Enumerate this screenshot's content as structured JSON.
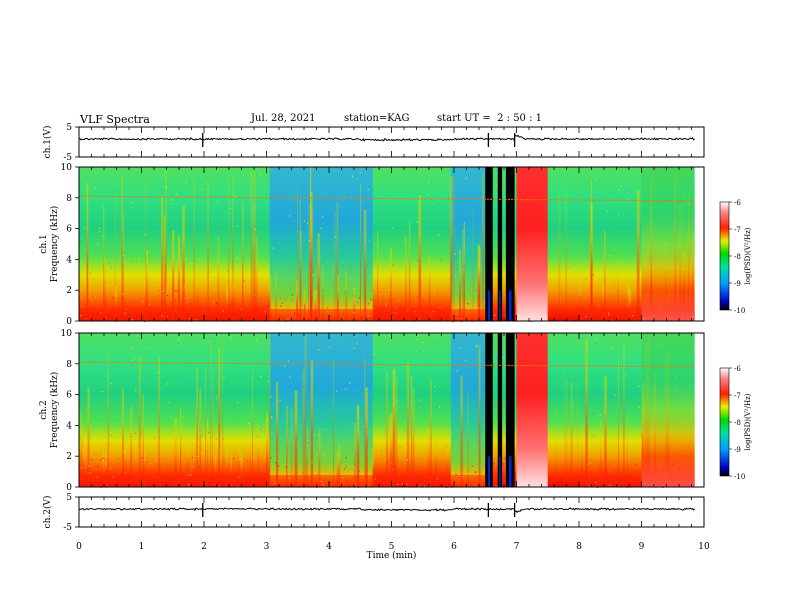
{
  "header": {
    "title": "VLF Spectra",
    "date": "Jul. 28, 2021",
    "station": "station=KAG",
    "start_time": "start UT =  2 : 50 : 1"
  },
  "chart_data": {
    "type": "heatmap",
    "xlabel": "Time (min)",
    "xlim": [
      0,
      10
    ],
    "xticks": [
      "0",
      "1",
      "2",
      "3",
      "4",
      "5",
      "6",
      "7",
      "8",
      "9",
      "10"
    ],
    "panels": [
      {
        "name": "ch.1(V)",
        "kind": "waveform",
        "ylabel": "ch.1(V)",
        "yticks": [
          "5",
          "-5"
        ],
        "ylim": [
          -5,
          5
        ]
      },
      {
        "name": "ch.1",
        "kind": "spectrogram",
        "ylabel": "ch.1",
        "ylabel2": "Frequency (kHz)",
        "ylim": [
          0,
          10
        ],
        "yticks": [
          "0",
          "2",
          "4",
          "6",
          "8",
          "10"
        ],
        "colorbar": {
          "label": "log(PSD)(V²/Hz)",
          "range": [
            -10,
            -6
          ],
          "ticks": [
            "-6",
            "-7",
            "-8",
            "-9",
            "-10"
          ]
        }
      },
      {
        "name": "ch.2",
        "kind": "spectrogram",
        "ylabel": "ch.2",
        "ylabel2": "Frequency (kHz)",
        "ylim": [
          0,
          10
        ],
        "yticks": [
          "0",
          "2",
          "4",
          "6",
          "8",
          "10"
        ],
        "colorbar": {
          "label": "log(PSD)(V²/Hz)",
          "range": [
            -10,
            -6
          ],
          "ticks": [
            "-6",
            "-7",
            "-8",
            "-9",
            "-10"
          ]
        }
      },
      {
        "name": "ch.2(V)",
        "kind": "waveform",
        "ylabel": "ch.2(V)",
        "yticks": [
          "5",
          "-5"
        ],
        "ylim": [
          -5,
          5
        ]
      }
    ],
    "data_end_min": 9.85,
    "saturation_bands_min": [
      [
        6.5,
        6.62
      ],
      [
        6.7,
        6.77
      ],
      [
        6.83,
        6.97
      ]
    ],
    "strong_emission_min": [
      7.0,
      7.5
    ],
    "tone_line_khz": {
      "start": 8.1,
      "end": 7.8
    }
  }
}
